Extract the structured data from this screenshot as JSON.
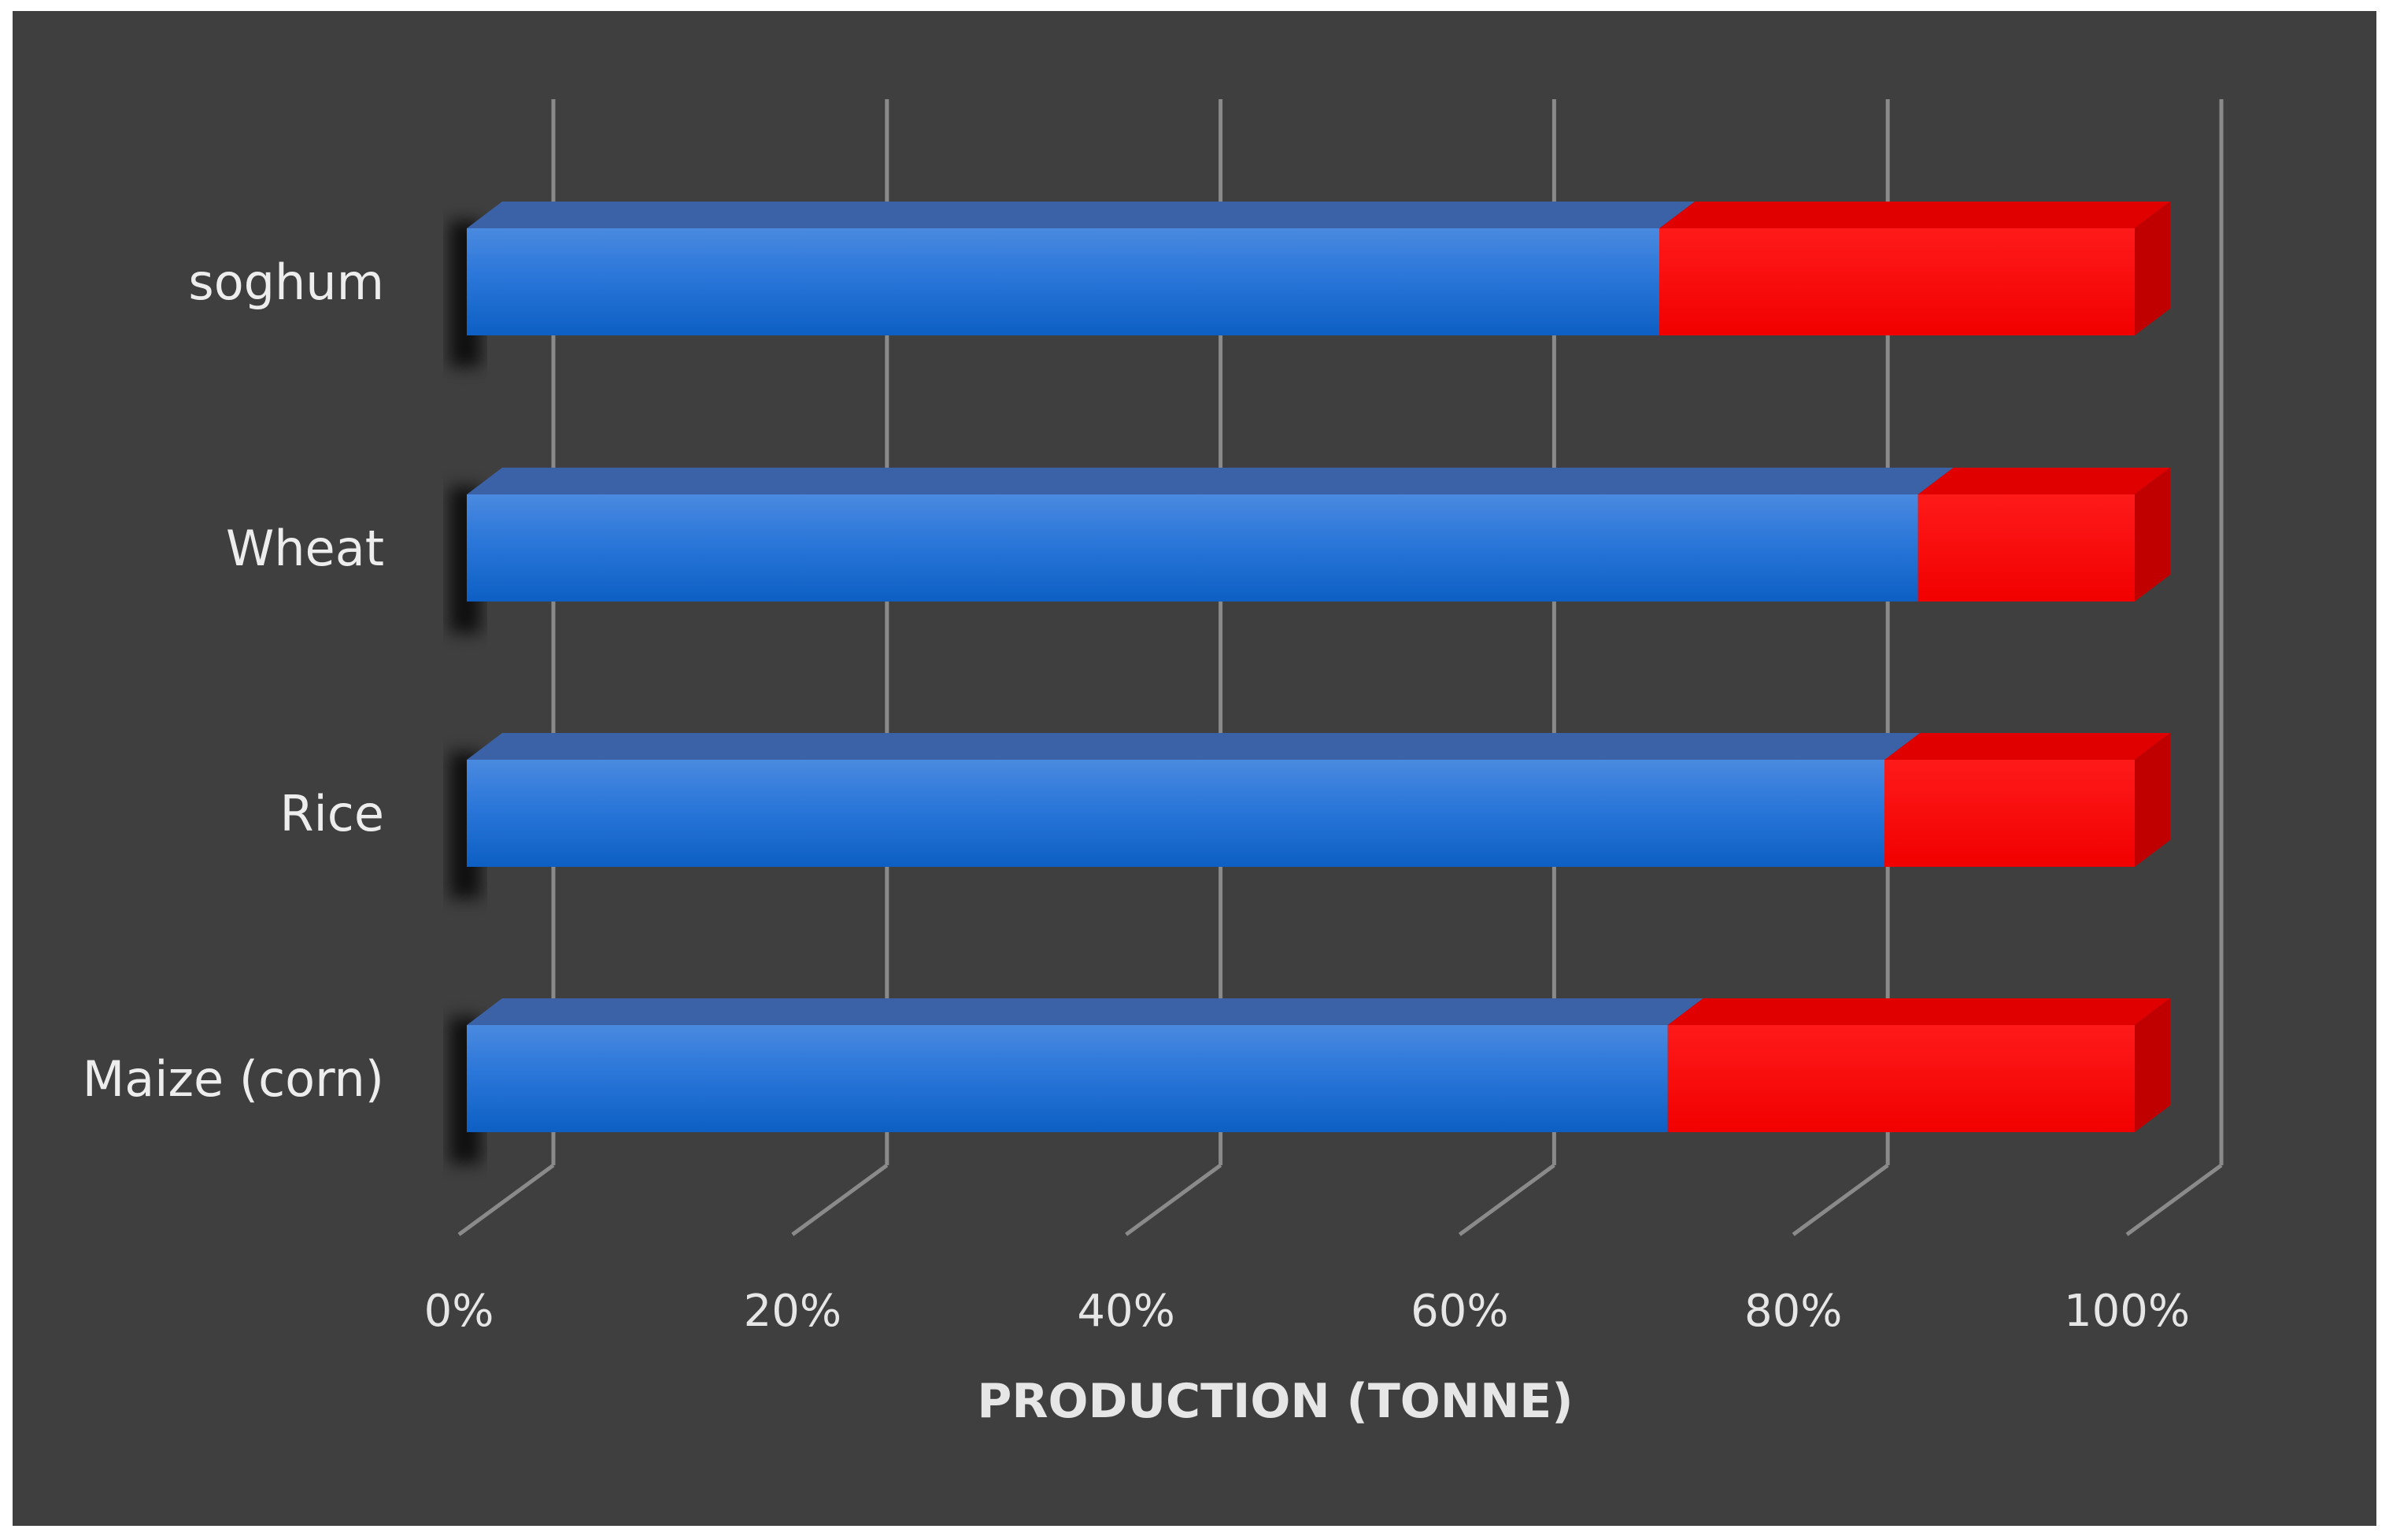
{
  "chart_data": {
    "type": "bar",
    "orientation": "horizontal",
    "stacked": "percent",
    "style": "3d",
    "categories": [
      "soghum",
      "Wheat",
      "Rice",
      "Maize (corn)"
    ],
    "series": [
      {
        "values": [
          71.5,
          87,
          85,
          72
        ],
        "color": "#1f6fd6"
      },
      {
        "values": [
          28.5,
          13,
          15,
          28
        ],
        "color": "#ff0000"
      }
    ],
    "xlabel": "PRODUCTION (TONNE)",
    "ylabel": "",
    "xlim": [
      0,
      100
    ],
    "xticks": [
      "0%",
      "20%",
      "40%",
      "60%",
      "80%",
      "100%"
    ],
    "grid": true,
    "legend": "none",
    "background": "#3f3f3f"
  }
}
